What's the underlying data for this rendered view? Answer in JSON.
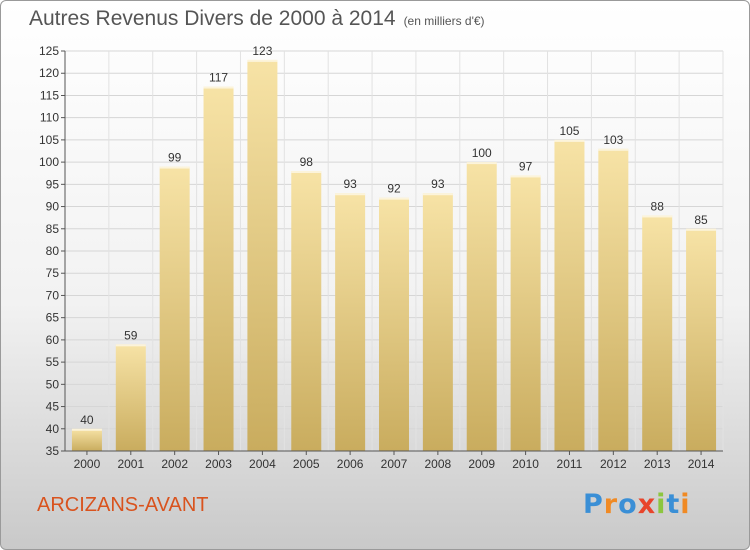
{
  "title": "Autres Revenus Divers de 2000 à 2014",
  "subtitle": "(en milliers d'€)",
  "place": "ARCIZANS-AVANT",
  "logo": {
    "text": "Proxiti",
    "colors": [
      "#3a8fd6",
      "#f08a24",
      "#3a8fd6",
      "#e8452b",
      "#8cc63f",
      "#3a8fd6",
      "#f08a24"
    ]
  },
  "chart_data": {
    "type": "bar",
    "title": "Autres Revenus Divers de 2000 à 2014",
    "subtitle": "(en milliers d'€)",
    "xlabel": "",
    "ylabel": "",
    "categories": [
      "2000",
      "2001",
      "2002",
      "2003",
      "2004",
      "2005",
      "2006",
      "2007",
      "2008",
      "2009",
      "2010",
      "2011",
      "2012",
      "2013",
      "2014"
    ],
    "values": [
      40,
      59,
      99,
      117,
      123,
      98,
      93,
      92,
      93,
      100,
      97,
      105,
      103,
      88,
      85
    ],
    "ylim": [
      35,
      125
    ],
    "yticks": [
      35,
      40,
      45,
      50,
      55,
      60,
      65,
      70,
      75,
      80,
      85,
      90,
      95,
      100,
      105,
      110,
      115,
      120,
      125
    ],
    "grid": true,
    "bar_color": "#e6cc7c"
  }
}
